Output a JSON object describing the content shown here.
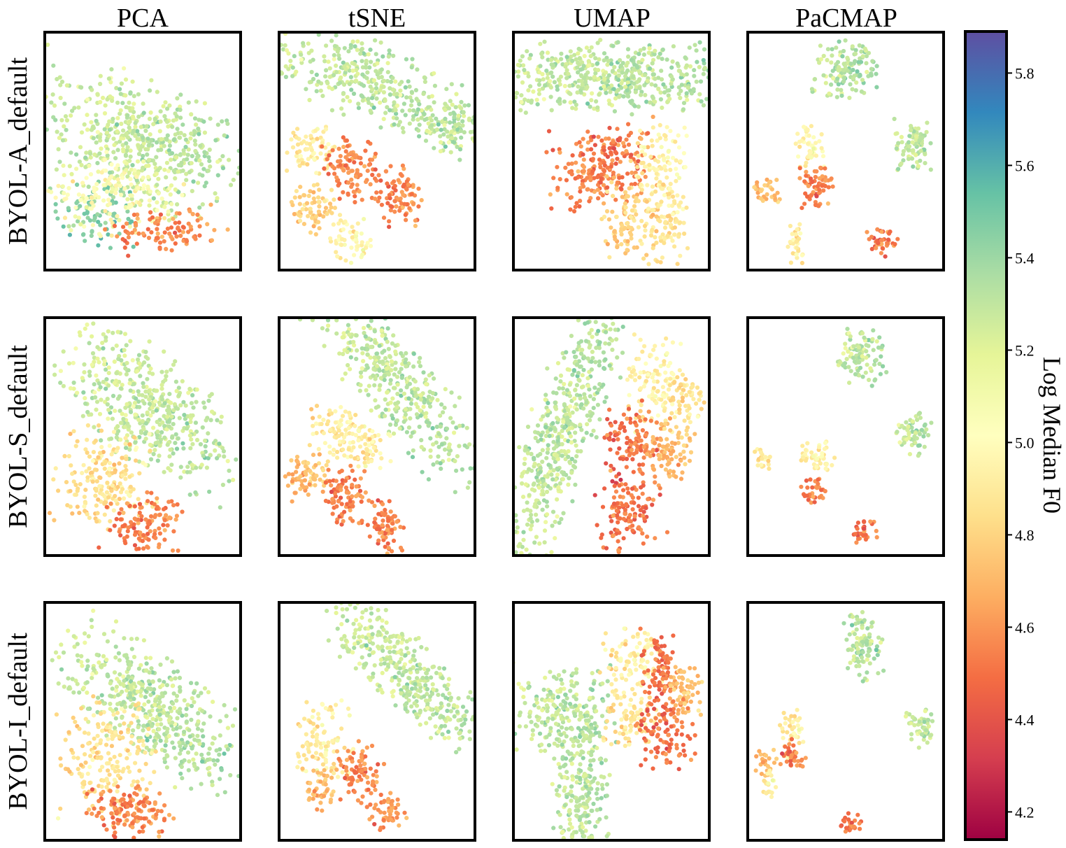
{
  "chart_data": {
    "type": "scatter",
    "columns": [
      "PCA",
      "tSNE",
      "UMAP",
      "PaCMAP"
    ],
    "rows": [
      "BYOL-A_default",
      "BYOL-S_default",
      "BYOL-I_default"
    ],
    "colorbar": {
      "label": "Log Median F0",
      "colormap": "Spectral",
      "range": [
        4.14,
        5.89
      ],
      "ticks": [
        "4.2",
        "4.4",
        "4.6",
        "4.8",
        "5.0",
        "5.2",
        "5.4",
        "5.6",
        "5.8"
      ]
    },
    "note_axes": "axes have no ticks",
    "panels": [
      [
        {
          "clusters": [
            {
              "cx": 0.48,
              "cy": 0.55,
              "sx": 0.26,
              "sy": 0.12,
              "rot": -0.25,
              "n": 520,
              "v": 5.28
            },
            {
              "cx": 0.25,
              "cy": 0.25,
              "sx": 0.1,
              "sy": 0.07,
              "rot": 0,
              "n": 90,
              "v": 5.45
            },
            {
              "cx": 0.38,
              "cy": 0.32,
              "sx": 0.16,
              "sy": 0.08,
              "rot": 0,
              "n": 160,
              "v": 5.05
            },
            {
              "cx": 0.62,
              "cy": 0.16,
              "sx": 0.14,
              "sy": 0.05,
              "rot": 0,
              "n": 100,
              "v": 4.55
            }
          ]
        },
        {
          "clusters": [
            {
              "cx": 0.48,
              "cy": 0.78,
              "sx": 0.28,
              "sy": 0.08,
              "rot": -0.35,
              "n": 380,
              "v": 5.3
            },
            {
              "cx": 0.88,
              "cy": 0.6,
              "sx": 0.07,
              "sy": 0.06,
              "rot": 0,
              "n": 70,
              "v": 5.28
            },
            {
              "cx": 0.16,
              "cy": 0.5,
              "sx": 0.06,
              "sy": 0.05,
              "rot": 0,
              "n": 70,
              "v": 4.92
            },
            {
              "cx": 0.37,
              "cy": 0.42,
              "sx": 0.07,
              "sy": 0.06,
              "rot": 0,
              "n": 100,
              "v": 4.55
            },
            {
              "cx": 0.61,
              "cy": 0.31,
              "sx": 0.06,
              "sy": 0.06,
              "rot": 0,
              "n": 90,
              "v": 4.55
            },
            {
              "cx": 0.18,
              "cy": 0.26,
              "sx": 0.06,
              "sy": 0.05,
              "rot": 0,
              "n": 70,
              "v": 4.8
            },
            {
              "cx": 0.36,
              "cy": 0.13,
              "sx": 0.05,
              "sy": 0.05,
              "rot": 0,
              "n": 60,
              "v": 4.98
            }
          ]
        },
        {
          "clusters": [
            {
              "cx": 0.5,
              "cy": 0.81,
              "sx": 0.32,
              "sy": 0.07,
              "rot": 0,
              "n": 520,
              "v": 5.3
            },
            {
              "cx": 0.35,
              "cy": 0.4,
              "sx": 0.08,
              "sy": 0.08,
              "rot": 0,
              "n": 110,
              "v": 4.55
            },
            {
              "cx": 0.55,
              "cy": 0.47,
              "sx": 0.08,
              "sy": 0.08,
              "rot": 0,
              "n": 110,
              "v": 4.52
            },
            {
              "cx": 0.75,
              "cy": 0.45,
              "sx": 0.07,
              "sy": 0.08,
              "rot": 0,
              "n": 100,
              "v": 4.95
            },
            {
              "cx": 0.58,
              "cy": 0.22,
              "sx": 0.07,
              "sy": 0.09,
              "rot": 0,
              "n": 100,
              "v": 4.8
            },
            {
              "cx": 0.78,
              "cy": 0.2,
              "sx": 0.06,
              "sy": 0.08,
              "rot": 0,
              "n": 90,
              "v": 4.85
            }
          ]
        },
        {
          "clusters": [
            {
              "cx": 0.49,
              "cy": 0.84,
              "sx": 0.08,
              "sy": 0.06,
              "rot": 0,
              "n": 130,
              "v": 5.32
            },
            {
              "cx": 0.85,
              "cy": 0.53,
              "sx": 0.05,
              "sy": 0.05,
              "rot": 0,
              "n": 80,
              "v": 5.3
            },
            {
              "cx": 0.32,
              "cy": 0.52,
              "sx": 0.04,
              "sy": 0.05,
              "rot": 0,
              "n": 50,
              "v": 4.98
            },
            {
              "cx": 0.35,
              "cy": 0.35,
              "sx": 0.04,
              "sy": 0.05,
              "rot": 0,
              "n": 60,
              "v": 4.55
            },
            {
              "cx": 0.1,
              "cy": 0.33,
              "sx": 0.03,
              "sy": 0.03,
              "rot": 0,
              "n": 30,
              "v": 4.72
            },
            {
              "cx": 0.25,
              "cy": 0.11,
              "sx": 0.03,
              "sy": 0.04,
              "rot": 0,
              "n": 30,
              "v": 4.9
            },
            {
              "cx": 0.68,
              "cy": 0.12,
              "sx": 0.04,
              "sy": 0.03,
              "rot": 0,
              "n": 40,
              "v": 4.52
            }
          ]
        }
      ],
      [
        {
          "clusters": [
            {
              "cx": 0.52,
              "cy": 0.63,
              "sx": 0.24,
              "sy": 0.11,
              "rot": -0.55,
              "n": 480,
              "v": 5.28
            },
            {
              "cx": 0.3,
              "cy": 0.32,
              "sx": 0.12,
              "sy": 0.1,
              "rot": 0,
              "n": 200,
              "v": 4.85
            },
            {
              "cx": 0.5,
              "cy": 0.13,
              "sx": 0.1,
              "sy": 0.06,
              "rot": 0,
              "n": 120,
              "v": 4.55
            }
          ]
        },
        {
          "clusters": [
            {
              "cx": 0.6,
              "cy": 0.72,
              "sx": 0.25,
              "sy": 0.08,
              "rot": -0.75,
              "n": 400,
              "v": 5.3
            },
            {
              "cx": 0.28,
              "cy": 0.52,
              "sx": 0.07,
              "sy": 0.06,
              "rot": 0,
              "n": 80,
              "v": 4.92
            },
            {
              "cx": 0.44,
              "cy": 0.45,
              "sx": 0.06,
              "sy": 0.05,
              "rot": 0,
              "n": 60,
              "v": 4.9
            },
            {
              "cx": 0.14,
              "cy": 0.32,
              "sx": 0.05,
              "sy": 0.05,
              "rot": 0,
              "n": 70,
              "v": 4.72
            },
            {
              "cx": 0.34,
              "cy": 0.25,
              "sx": 0.06,
              "sy": 0.06,
              "rot": 0,
              "n": 90,
              "v": 4.55
            },
            {
              "cx": 0.55,
              "cy": 0.13,
              "sx": 0.04,
              "sy": 0.06,
              "rot": 0,
              "n": 70,
              "v": 4.55
            }
          ]
        },
        {
          "clusters": [
            {
              "cx": 0.25,
              "cy": 0.52,
              "sx": 0.32,
              "sy": 0.08,
              "rot": 1.15,
              "n": 520,
              "v": 5.3
            },
            {
              "cx": 0.72,
              "cy": 0.72,
              "sx": 0.07,
              "sy": 0.1,
              "rot": 0,
              "n": 110,
              "v": 4.95
            },
            {
              "cx": 0.87,
              "cy": 0.66,
              "sx": 0.05,
              "sy": 0.06,
              "rot": 0,
              "n": 60,
              "v": 4.85
            },
            {
              "cx": 0.6,
              "cy": 0.47,
              "sx": 0.07,
              "sy": 0.08,
              "rot": 0,
              "n": 110,
              "v": 4.52
            },
            {
              "cx": 0.8,
              "cy": 0.43,
              "sx": 0.06,
              "sy": 0.07,
              "rot": 0,
              "n": 90,
              "v": 4.7
            },
            {
              "cx": 0.58,
              "cy": 0.18,
              "sx": 0.08,
              "sy": 0.09,
              "rot": 0,
              "n": 120,
              "v": 4.5
            }
          ]
        },
        {
          "clusters": [
            {
              "cx": 0.57,
              "cy": 0.84,
              "sx": 0.06,
              "sy": 0.06,
              "rot": 0,
              "n": 100,
              "v": 5.3
            },
            {
              "cx": 0.85,
              "cy": 0.51,
              "sx": 0.04,
              "sy": 0.04,
              "rot": 0,
              "n": 60,
              "v": 5.3
            },
            {
              "cx": 0.35,
              "cy": 0.42,
              "sx": 0.05,
              "sy": 0.03,
              "rot": 0,
              "n": 50,
              "v": 4.95
            },
            {
              "cx": 0.08,
              "cy": 0.4,
              "sx": 0.02,
              "sy": 0.03,
              "rot": 0,
              "n": 20,
              "v": 4.9
            },
            {
              "cx": 0.34,
              "cy": 0.27,
              "sx": 0.03,
              "sy": 0.03,
              "rot": 0,
              "n": 30,
              "v": 4.55
            },
            {
              "cx": 0.6,
              "cy": 0.1,
              "sx": 0.03,
              "sy": 0.03,
              "rot": 0,
              "n": 30,
              "v": 4.52
            }
          ]
        }
      ],
      [
        {
          "clusters": [
            {
              "cx": 0.55,
              "cy": 0.55,
              "sx": 0.25,
              "sy": 0.1,
              "rot": -0.55,
              "n": 480,
              "v": 5.3
            },
            {
              "cx": 0.32,
              "cy": 0.33,
              "sx": 0.12,
              "sy": 0.12,
              "rot": 0,
              "n": 200,
              "v": 4.85
            },
            {
              "cx": 0.44,
              "cy": 0.12,
              "sx": 0.1,
              "sy": 0.05,
              "rot": 0,
              "n": 130,
              "v": 4.55
            }
          ]
        },
        {
          "clusters": [
            {
              "cx": 0.65,
              "cy": 0.7,
              "sx": 0.23,
              "sy": 0.07,
              "rot": -0.65,
              "n": 380,
              "v": 5.28
            },
            {
              "cx": 0.22,
              "cy": 0.42,
              "sx": 0.07,
              "sy": 0.08,
              "rot": 0,
              "n": 90,
              "v": 4.92
            },
            {
              "cx": 0.4,
              "cy": 0.29,
              "sx": 0.06,
              "sy": 0.06,
              "rot": 0,
              "n": 80,
              "v": 4.55
            },
            {
              "cx": 0.22,
              "cy": 0.22,
              "sx": 0.04,
              "sy": 0.06,
              "rot": 0,
              "n": 50,
              "v": 4.72
            },
            {
              "cx": 0.54,
              "cy": 0.12,
              "sx": 0.05,
              "sy": 0.04,
              "rot": 0,
              "n": 50,
              "v": 4.6
            }
          ]
        },
        {
          "clusters": [
            {
              "cx": 0.25,
              "cy": 0.54,
              "sx": 0.12,
              "sy": 0.09,
              "rot": 0,
              "n": 220,
              "v": 5.3
            },
            {
              "cx": 0.35,
              "cy": 0.22,
              "sx": 0.07,
              "sy": 0.15,
              "rot": 0,
              "n": 220,
              "v": 5.3
            },
            {
              "cx": 0.59,
              "cy": 0.75,
              "sx": 0.08,
              "sy": 0.07,
              "rot": 0,
              "n": 100,
              "v": 4.92
            },
            {
              "cx": 0.6,
              "cy": 0.51,
              "sx": 0.07,
              "sy": 0.06,
              "rot": 0,
              "n": 80,
              "v": 4.88
            },
            {
              "cx": 0.75,
              "cy": 0.7,
              "sx": 0.05,
              "sy": 0.09,
              "rot": 0,
              "n": 90,
              "v": 4.5
            },
            {
              "cx": 0.87,
              "cy": 0.63,
              "sx": 0.05,
              "sy": 0.06,
              "rot": 0,
              "n": 70,
              "v": 4.72
            },
            {
              "cx": 0.78,
              "cy": 0.44,
              "sx": 0.07,
              "sy": 0.07,
              "rot": 0,
              "n": 90,
              "v": 4.5
            }
          ]
        },
        {
          "clusters": [
            {
              "cx": 0.58,
              "cy": 0.82,
              "sx": 0.05,
              "sy": 0.07,
              "rot": 0,
              "n": 100,
              "v": 5.3
            },
            {
              "cx": 0.88,
              "cy": 0.48,
              "sx": 0.04,
              "sy": 0.04,
              "rot": 0,
              "n": 50,
              "v": 5.28
            },
            {
              "cx": 0.22,
              "cy": 0.45,
              "sx": 0.03,
              "sy": 0.05,
              "rot": 0,
              "n": 40,
              "v": 4.92
            },
            {
              "cx": 0.23,
              "cy": 0.36,
              "sx": 0.03,
              "sy": 0.03,
              "rot": 0,
              "n": 35,
              "v": 4.52
            },
            {
              "cx": 0.1,
              "cy": 0.33,
              "sx": 0.03,
              "sy": 0.03,
              "rot": 0,
              "n": 25,
              "v": 4.72
            },
            {
              "cx": 0.11,
              "cy": 0.24,
              "sx": 0.02,
              "sy": 0.03,
              "rot": 0,
              "n": 20,
              "v": 4.95
            },
            {
              "cx": 0.53,
              "cy": 0.07,
              "sx": 0.03,
              "sy": 0.02,
              "rot": 0,
              "n": 25,
              "v": 4.52
            }
          ]
        }
      ]
    ]
  }
}
